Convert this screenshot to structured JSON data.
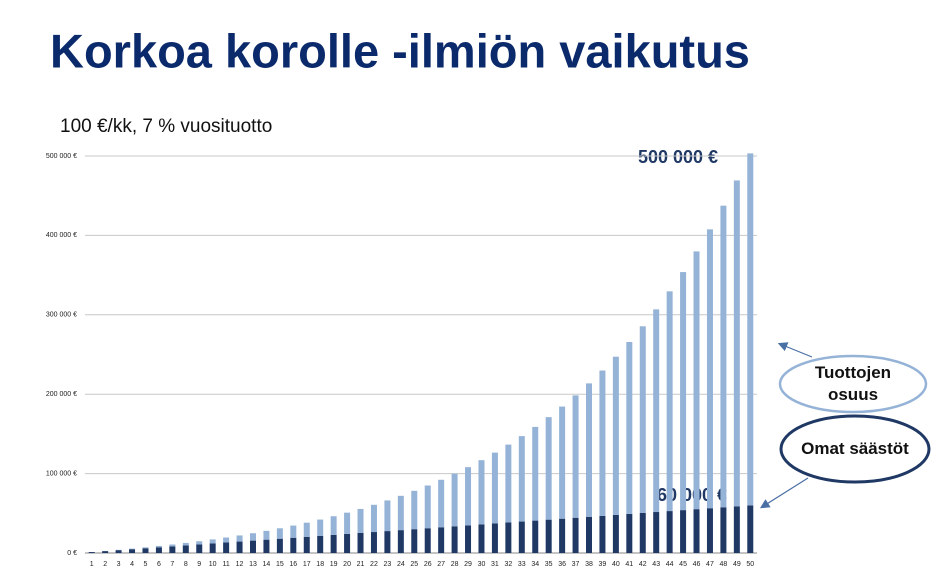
{
  "chart_data": {
    "type": "bar",
    "stacked": true,
    "title": "Korkoa korolle -ilmiön vaikutus",
    "subtitle": "100 €/kk, 7 % vuosituotto",
    "categories": [
      "1",
      "2",
      "3",
      "4",
      "5",
      "6",
      "7",
      "8",
      "9",
      "10",
      "11",
      "12",
      "13",
      "14",
      "15",
      "16",
      "17",
      "18",
      "19",
      "20",
      "21",
      "22",
      "23",
      "24",
      "25",
      "26",
      "27",
      "28",
      "29",
      "30",
      "31",
      "32",
      "33",
      "34",
      "35",
      "36",
      "37",
      "38",
      "39",
      "40",
      "41",
      "42",
      "43",
      "44",
      "45",
      "46",
      "47",
      "48",
      "49",
      "50"
    ],
    "series": [
      {
        "name": "Omat säästöt",
        "color": "#1f3864",
        "values": [
          1200,
          2400,
          3600,
          4800,
          6000,
          7200,
          8400,
          9600,
          10800,
          12000,
          13200,
          14400,
          15600,
          16800,
          18000,
          19200,
          20400,
          21600,
          22800,
          24000,
          25200,
          26400,
          27600,
          28800,
          30000,
          31200,
          32400,
          33600,
          34800,
          36000,
          37200,
          38400,
          39600,
          40800,
          42000,
          43200,
          44400,
          45600,
          46800,
          48000,
          49200,
          50400,
          51600,
          52800,
          54000,
          55200,
          56400,
          57600,
          58800,
          60000
        ]
      },
      {
        "name": "Tuottojen osuus",
        "color": "#95b3d7",
        "values": [
          0,
          200,
          400,
          700,
          1100,
          1700,
          2300,
          3100,
          4000,
          5100,
          6300,
          7700,
          9300,
          11100,
          13100,
          15300,
          17800,
          20500,
          23500,
          26800,
          30300,
          34300,
          38600,
          43200,
          48300,
          53800,
          59800,
          66300,
          73300,
          80900,
          89200,
          98100,
          107600,
          118000,
          129100,
          141200,
          154100,
          168000,
          183000,
          199200,
          216500,
          235100,
          255200,
          276700,
          299800,
          324600,
          351200,
          379800,
          410400,
          443300
        ]
      }
    ],
    "ylim": [
      0,
      505000
    ],
    "yticks": [
      {
        "value": 0,
        "label": "0 €"
      },
      {
        "value": 100000,
        "label": "100 000 €"
      },
      {
        "value": 200000,
        "label": "200 000 €"
      },
      {
        "value": 300000,
        "label": "300 000 €"
      },
      {
        "value": 400000,
        "label": "400 000 €"
      },
      {
        "value": 500000,
        "label": "500 000 €"
      }
    ],
    "grid": true,
    "annotations": [
      "500 000 €",
      "60 000 €"
    ]
  }
}
